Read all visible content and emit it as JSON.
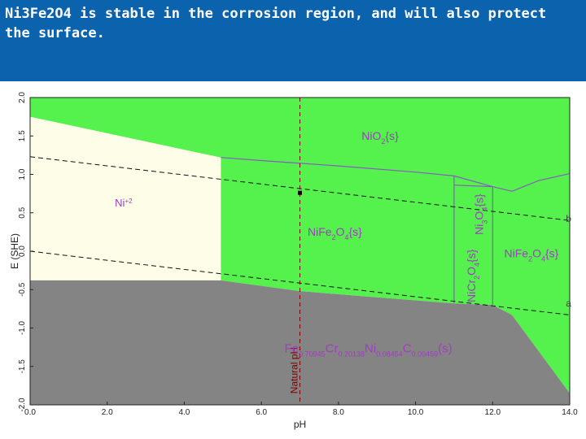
{
  "header": {
    "title": "Ni3Fe2O4 is stable in the corrosion region, and will also protect the surface."
  },
  "chart_data": {
    "type": "area",
    "title": "",
    "xlabel": "pH",
    "ylabel": "E (SHE)",
    "xlim": [
      0,
      14
    ],
    "ylim": [
      -2,
      2
    ],
    "grid": false,
    "x_ticks": [
      0,
      2,
      4,
      6,
      8,
      10,
      12,
      14
    ],
    "x_tick_labels": [
      "0.0",
      "2.0",
      "4.0",
      "6.0",
      "8.0",
      "10.0",
      "12.0",
      "14.0"
    ],
    "y_ticks": [
      -2,
      -1.5,
      -1,
      -0.5,
      0,
      0.5,
      1,
      1.5,
      2
    ],
    "y_tick_labels": [
      "-2.0",
      "-1.5",
      "-1.0",
      "-0.5",
      "0.0",
      "0.5",
      "1.0",
      "1.5",
      "2.0"
    ],
    "colors": {
      "ni_ion": "#fdfde8",
      "oxides": "#55f24d",
      "solid_phase": "#848484",
      "boundary": "#8a5ac2",
      "label": "#a23cc4",
      "natural_ph": "#800000"
    },
    "regions": [
      {
        "name": "Ni+2",
        "fill": "ni_ion",
        "points": [
          [
            0,
            1.75
          ],
          [
            4.95,
            1.22
          ],
          [
            4.95,
            -0.38
          ],
          [
            0,
            -0.38
          ]
        ]
      },
      {
        "name": "oxides",
        "fill": "oxides",
        "points": [
          [
            0,
            2
          ],
          [
            14,
            2
          ],
          [
            14,
            -1.85
          ],
          [
            12.5,
            -0.83
          ],
          [
            12,
            -0.7
          ],
          [
            11,
            -0.68
          ],
          [
            9,
            -0.6
          ],
          [
            7,
            -0.52
          ],
          [
            4.95,
            -0.38
          ],
          [
            4.95,
            1.22
          ],
          [
            0,
            1.75
          ]
        ]
      },
      {
        "name": "Fe0.70945Cr0.20138Ni0.08454C0.00459(s)",
        "fill": "solid_phase",
        "points": [
          [
            0,
            -0.38
          ],
          [
            4.95,
            -0.38
          ],
          [
            7,
            -0.52
          ],
          [
            9,
            -0.6
          ],
          [
            11,
            -0.68
          ],
          [
            12,
            -0.7
          ],
          [
            12.5,
            -0.83
          ],
          [
            14,
            -1.85
          ],
          [
            14,
            -2
          ],
          [
            0,
            -2
          ]
        ]
      }
    ],
    "boundaries": [
      [
        [
          4.95,
          1.22
        ],
        [
          6,
          1.18
        ],
        [
          8,
          1.11
        ],
        [
          10,
          1.03
        ],
        [
          11,
          0.98
        ],
        [
          12,
          0.84
        ],
        [
          12.5,
          0.78
        ]
      ],
      [
        [
          12.5,
          0.78
        ],
        [
          13.2,
          0.92
        ],
        [
          14,
          1.01
        ]
      ],
      [
        [
          11,
          0.98
        ],
        [
          11,
          -0.68
        ]
      ],
      [
        [
          12,
          0.84
        ],
        [
          12,
          -0.7
        ]
      ],
      [
        [
          11,
          0.86
        ],
        [
          12,
          0.84
        ]
      ]
    ],
    "water_lines": [
      {
        "name": "b",
        "points": [
          [
            0,
            1.23
          ],
          [
            14,
            0.4
          ]
        ]
      },
      {
        "name": "a",
        "points": [
          [
            0,
            0.0
          ],
          [
            14,
            -0.83
          ]
        ]
      }
    ],
    "natural_ph": {
      "label": "Natural pH",
      "x": 7.0
    },
    "operating_point": {
      "x": 7.0,
      "y": 0.76
    },
    "region_labels": [
      {
        "id": "ni2",
        "base": "Ni",
        "parts": [
          {
            "text": "+2",
            "sup": true
          }
        ],
        "x": 2.2,
        "y": 0.58
      },
      {
        "id": "nio2",
        "base": "NiO",
        "parts": [
          {
            "text": "2",
            "sub": true
          },
          {
            "text": "{s}",
            "sub": false
          }
        ],
        "x": 8.6,
        "y": 1.45
      },
      {
        "id": "nife2o4-center",
        "base": "NiFe",
        "parts": [
          {
            "text": "2",
            "sub": true
          },
          {
            "text": "O",
            "sub": false
          },
          {
            "text": "4",
            "sub": true
          },
          {
            "text": "{s}",
            "sub": false
          }
        ],
        "x": 7.2,
        "y": 0.2
      },
      {
        "id": "nife2o4-right",
        "base": "NiFe",
        "parts": [
          {
            "text": "2",
            "sub": true
          },
          {
            "text": "O",
            "sub": false
          },
          {
            "text": "4",
            "sub": true
          },
          {
            "text": "{s}",
            "sub": false
          }
        ],
        "x": 12.3,
        "y": -0.08
      },
      {
        "id": "fe-alloy",
        "base": "Fe",
        "parts": [
          {
            "text": "0.70945",
            "sub": true
          },
          {
            "text": "Cr",
            "sub": false
          },
          {
            "text": "0.20138",
            "sub": true
          },
          {
            "text": "Ni",
            "sub": false
          },
          {
            "text": "0.08454",
            "sub": true
          },
          {
            "text": "C",
            "sub": false
          },
          {
            "text": "0.00459",
            "sub": true
          },
          {
            "text": "(s)",
            "sub": false
          }
        ],
        "x": 6.6,
        "y": -1.32
      }
    ],
    "rotated_labels": [
      {
        "id": "nicr2o4",
        "base": "NiCr",
        "parts": [
          {
            "text": "2",
            "sub": true
          },
          {
            "text": "O",
            "sub": false
          },
          {
            "text": "4",
            "sub": true
          },
          {
            "text": "{s}",
            "sub": false
          }
        ],
        "x": 11.55,
        "y": -0.32
      },
      {
        "id": "ni3o4",
        "base": "Ni",
        "parts": [
          {
            "text": "3",
            "sub": true
          },
          {
            "text": "O",
            "sub": false
          },
          {
            "text": "4",
            "sub": true
          },
          {
            "text": "{s}",
            "sub": false
          }
        ],
        "x": 11.75,
        "y": 0.48
      }
    ],
    "water_line_labels": [
      {
        "text": "b",
        "x": 13.9,
        "y": 0.38
      },
      {
        "text": "a",
        "x": 13.9,
        "y": -0.72
      }
    ]
  }
}
